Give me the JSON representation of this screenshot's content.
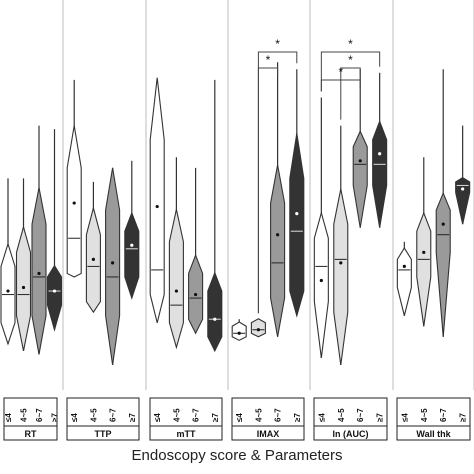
{
  "chart_data": {
    "type": "violin-diamond",
    "xlabel": "Endoscopy score & Parameters",
    "groups_levels": [
      "≤4",
      "4~5",
      "6~7",
      "≥7"
    ],
    "level_fills": [
      "#ffffff",
      "#e0e0e0",
      "#9a9a9a",
      "#333333"
    ],
    "y_scale": "relative per panel (0 = bottom, 1 = top)",
    "panels": [
      {
        "name": "RT",
        "levels": [
          {
            "level": "≤4",
            "min": 0.08,
            "q1": 0.14,
            "median": 0.22,
            "q3": 0.3,
            "max": 0.55,
            "mean": 0.23
          },
          {
            "level": "4~5",
            "min": 0.06,
            "q1": 0.16,
            "median": 0.22,
            "q3": 0.34,
            "max": 0.55,
            "mean": 0.24
          },
          {
            "level": "6~7",
            "min": 0.05,
            "q1": 0.16,
            "median": 0.27,
            "q3": 0.42,
            "max": 0.7,
            "mean": 0.28
          },
          {
            "level": "≥7",
            "min": 0.12,
            "q1": 0.19,
            "median": 0.23,
            "q3": 0.27,
            "max": 0.69,
            "mean": 0.23
          }
        ]
      },
      {
        "name": "TTP",
        "levels": [
          {
            "level": "≤4",
            "min": 0.27,
            "q1": 0.28,
            "median": 0.38,
            "q3": 0.58,
            "max": 0.83,
            "mean": 0.48
          },
          {
            "level": "4~5",
            "min": 0.17,
            "q1": 0.2,
            "median": 0.3,
            "q3": 0.39,
            "max": 0.54,
            "mean": 0.32
          },
          {
            "level": "6~7",
            "min": 0.02,
            "q1": 0.16,
            "median": 0.27,
            "q3": 0.46,
            "max": 0.58,
            "mean": 0.31
          },
          {
            "level": "≥7",
            "min": 0.21,
            "q1": 0.27,
            "median": 0.35,
            "q3": 0.4,
            "max": 0.6,
            "mean": 0.36
          }
        ]
      },
      {
        "name": "mTT",
        "levels": [
          {
            "level": "≤4",
            "min": 0.14,
            "q1": 0.22,
            "median": 0.29,
            "q3": 0.66,
            "max": 0.73,
            "mean": 0.47
          },
          {
            "level": "4~5",
            "min": 0.07,
            "q1": 0.14,
            "median": 0.19,
            "q3": 0.37,
            "max": 0.61,
            "mean": 0.23
          },
          {
            "level": "6~7",
            "min": 0.11,
            "q1": 0.15,
            "median": 0.21,
            "q3": 0.28,
            "max": 0.58,
            "mean": 0.22
          },
          {
            "level": "≥7",
            "min": 0.06,
            "q1": 0.1,
            "median": 0.15,
            "q3": 0.23,
            "max": 0.83,
            "mean": 0.15
          }
        ]
      },
      {
        "name": "IMAX",
        "levels": [
          {
            "level": "≤4",
            "min": 0.09,
            "q1": 0.1,
            "median": 0.11,
            "q3": 0.13,
            "max": 0.15,
            "mean": 0.11
          },
          {
            "level": "4~5",
            "min": 0.1,
            "q1": 0.11,
            "median": 0.12,
            "q3": 0.14,
            "max": 0.15,
            "mean": 0.12
          },
          {
            "level": "6~7",
            "min": 0.1,
            "q1": 0.21,
            "median": 0.31,
            "q3": 0.48,
            "max": 0.88,
            "mean": 0.39
          },
          {
            "level": "≥7",
            "min": 0.16,
            "q1": 0.23,
            "median": 0.4,
            "q3": 0.55,
            "max": 0.86,
            "mean": 0.45
          }
        ]
      },
      {
        "name": "ln (AUC)",
        "levels": [
          {
            "level": "≤4",
            "min": 0.04,
            "q1": 0.2,
            "median": 0.3,
            "q3": 0.38,
            "max": 0.78,
            "mean": 0.26
          },
          {
            "level": "4~5",
            "min": 0.02,
            "q1": 0.17,
            "median": 0.32,
            "q3": 0.42,
            "max": 0.7,
            "mean": 0.31
          },
          {
            "level": "6~7",
            "min": 0.41,
            "q1": 0.53,
            "median": 0.59,
            "q3": 0.64,
            "max": 0.86,
            "mean": 0.6
          },
          {
            "level": "≥7",
            "min": 0.41,
            "q1": 0.53,
            "median": 0.59,
            "q3": 0.66,
            "max": 0.85,
            "mean": 0.62
          }
        ]
      },
      {
        "name": "Wall thk",
        "levels": [
          {
            "level": "≤4",
            "min": 0.16,
            "q1": 0.24,
            "median": 0.29,
            "q3": 0.32,
            "max": 0.37,
            "mean": 0.3
          },
          {
            "level": "4~5",
            "min": 0.13,
            "q1": 0.27,
            "median": 0.32,
            "q3": 0.4,
            "max": 0.61,
            "mean": 0.34
          },
          {
            "level": "6~7",
            "min": 0.1,
            "q1": 0.34,
            "median": 0.39,
            "q3": 0.46,
            "max": 0.86,
            "mean": 0.42
          },
          {
            "level": "≥7",
            "min": 0.42,
            "q1": 0.51,
            "median": 0.53,
            "q3": 0.54,
            "max": 0.7,
            "mean": 0.52
          }
        ]
      }
    ],
    "significance": [
      {
        "panel": "IMAX",
        "from": "4~5",
        "to": "≥7",
        "label": "*"
      },
      {
        "panel": "IMAX",
        "from": "4~5",
        "to": "6~7",
        "label": "*"
      },
      {
        "panel": "ln (AUC)",
        "from": "≤4",
        "to": "≥7",
        "label": "*"
      },
      {
        "panel": "ln (AUC)",
        "from": "4~5",
        "to": "6~7",
        "label": "*"
      },
      {
        "panel": "ln (AUC)",
        "from": "≤4",
        "to": "6~7",
        "label": "*"
      }
    ]
  }
}
